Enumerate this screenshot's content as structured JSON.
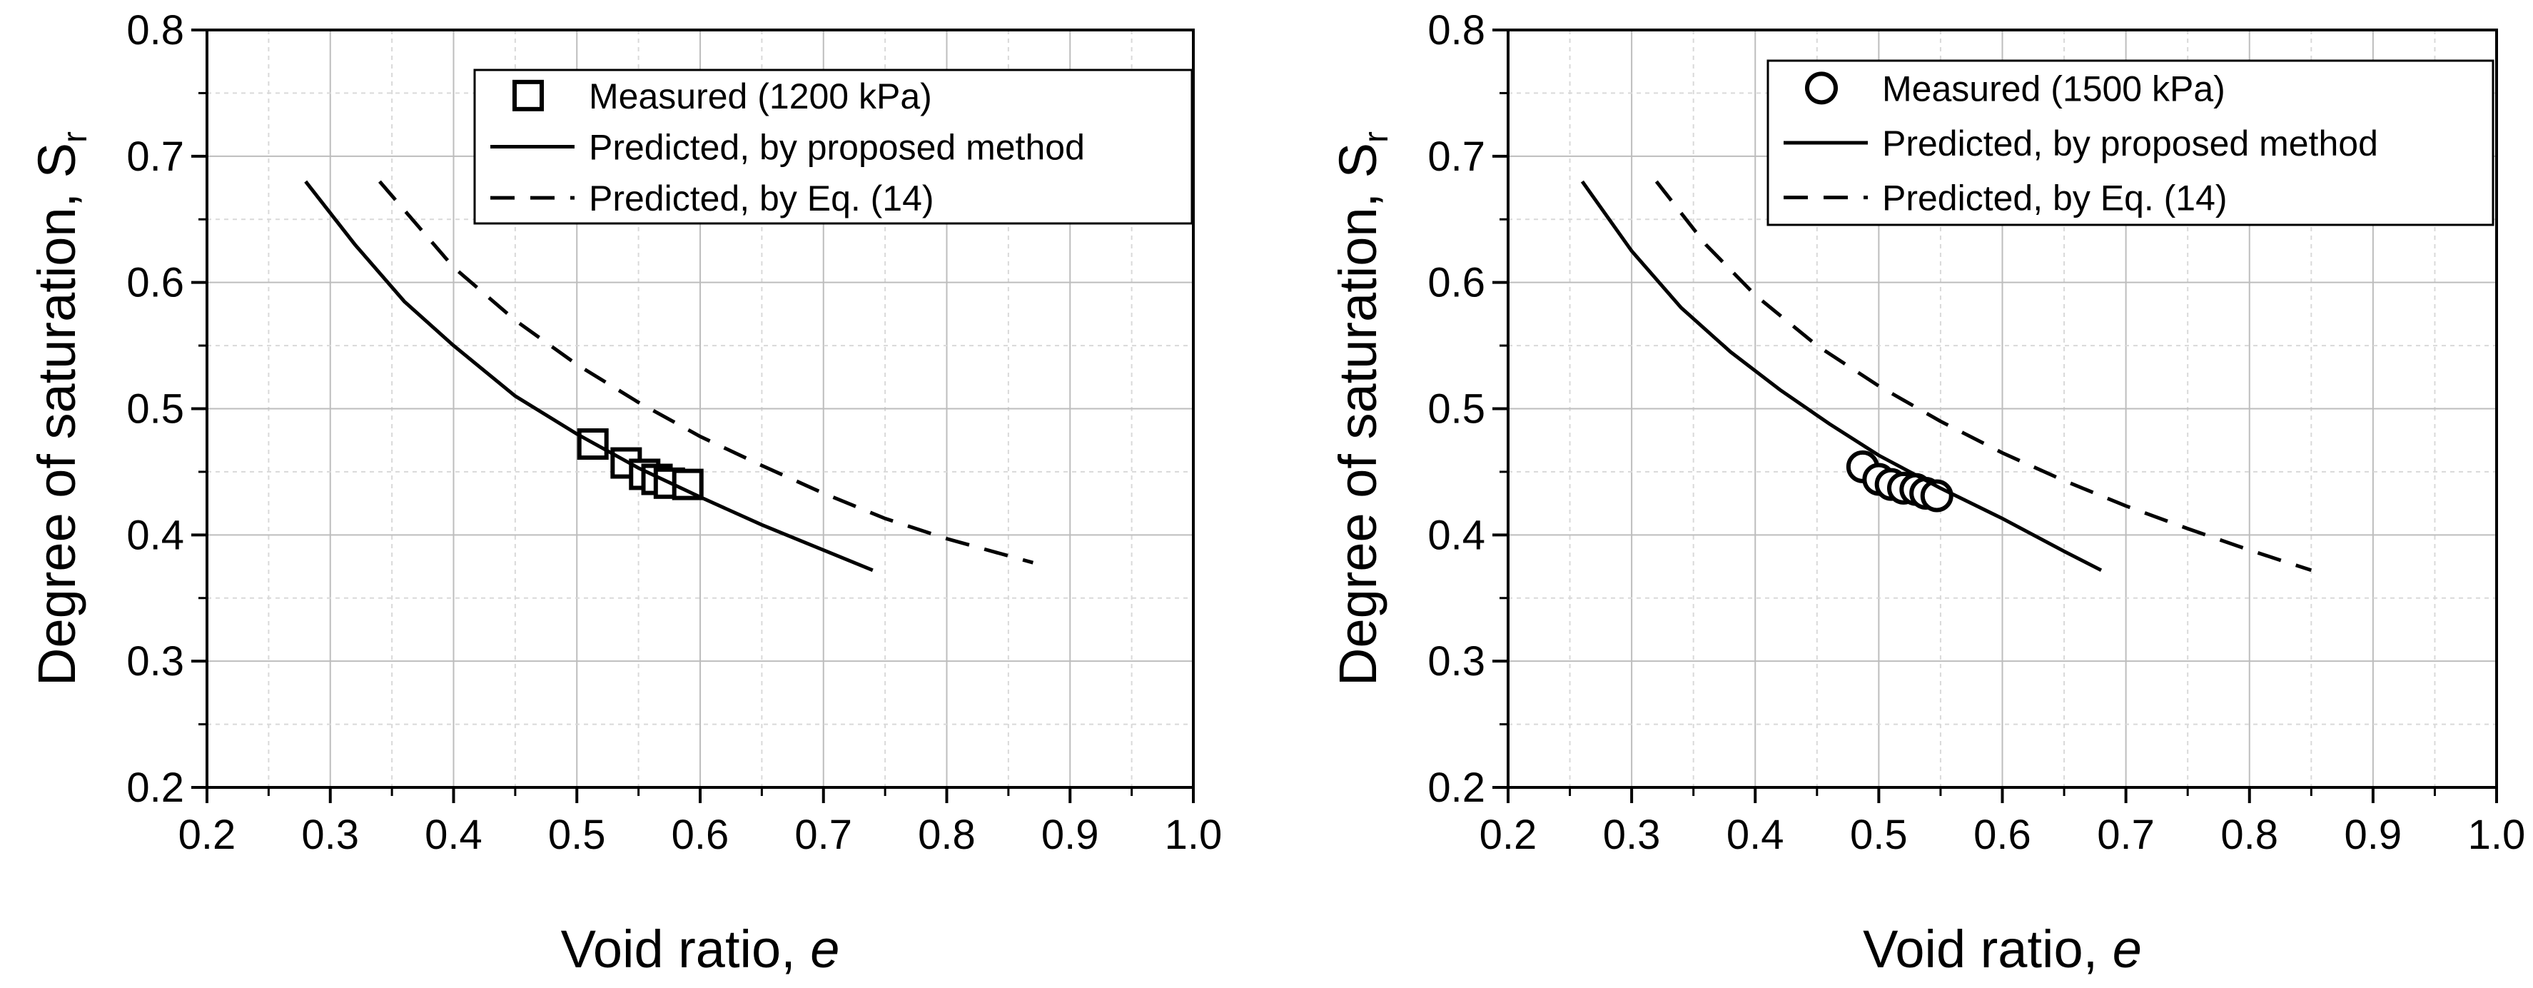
{
  "chart_data": [
    {
      "type": "line",
      "panel": "left",
      "xlabel": "Void ratio, ",
      "xlabel_symbol": "e",
      "ylabel": "Degree of saturation, S",
      "ylabel_subscript": "r",
      "xlim": [
        0.2,
        1.0
      ],
      "ylim": [
        0.2,
        0.8
      ],
      "x_ticks": [
        "0.2",
        "0.3",
        "0.4",
        "0.5",
        "0.6",
        "0.7",
        "0.8",
        "0.9",
        "1.0"
      ],
      "y_ticks": [
        "0.2",
        "0.3",
        "0.4",
        "0.5",
        "0.6",
        "0.7",
        "0.8"
      ],
      "grid": true,
      "legend_position": "top-right",
      "series": [
        {
          "name": "Measured (1200 kPa)",
          "kind": "scatter",
          "marker": "square",
          "x": [
            0.513,
            0.54,
            0.555,
            0.565,
            0.575,
            0.59
          ],
          "y": [
            0.472,
            0.457,
            0.448,
            0.444,
            0.441,
            0.44
          ]
        },
        {
          "name": "Predicted, by proposed method",
          "kind": "line",
          "style": "solid",
          "x": [
            0.28,
            0.32,
            0.36,
            0.4,
            0.45,
            0.5,
            0.55,
            0.6,
            0.65,
            0.7,
            0.74
          ],
          "y": [
            0.68,
            0.63,
            0.585,
            0.55,
            0.51,
            0.48,
            0.453,
            0.43,
            0.408,
            0.388,
            0.372
          ]
        },
        {
          "name": "Predicted, by Eq. (14)",
          "kind": "line",
          "style": "dashed",
          "x": [
            0.34,
            0.4,
            0.45,
            0.5,
            0.55,
            0.6,
            0.65,
            0.7,
            0.75,
            0.8,
            0.87
          ],
          "y": [
            0.68,
            0.612,
            0.57,
            0.535,
            0.505,
            0.478,
            0.455,
            0.433,
            0.413,
            0.397,
            0.378
          ]
        }
      ]
    },
    {
      "type": "line",
      "panel": "right",
      "xlabel": "Void ratio, ",
      "xlabel_symbol": "e",
      "ylabel": "Degree of saturation, S",
      "ylabel_subscript": "r",
      "xlim": [
        0.2,
        1.0
      ],
      "ylim": [
        0.2,
        0.8
      ],
      "x_ticks": [
        "0.2",
        "0.3",
        "0.4",
        "0.5",
        "0.6",
        "0.7",
        "0.8",
        "0.9",
        "1.0"
      ],
      "y_ticks": [
        "0.2",
        "0.3",
        "0.4",
        "0.5",
        "0.6",
        "0.7",
        "0.8"
      ],
      "grid": true,
      "legend_position": "top-right",
      "series": [
        {
          "name": "Measured (1500 kPa)",
          "kind": "scatter",
          "marker": "circle",
          "x": [
            0.487,
            0.5,
            0.51,
            0.52,
            0.53,
            0.538,
            0.547
          ],
          "y": [
            0.454,
            0.444,
            0.44,
            0.437,
            0.436,
            0.433,
            0.431
          ]
        },
        {
          "name": "Predicted, by proposed method",
          "kind": "line",
          "style": "solid",
          "x": [
            0.26,
            0.3,
            0.34,
            0.38,
            0.42,
            0.46,
            0.5,
            0.55,
            0.6,
            0.65,
            0.68
          ],
          "y": [
            0.68,
            0.625,
            0.58,
            0.545,
            0.515,
            0.488,
            0.463,
            0.437,
            0.413,
            0.387,
            0.372
          ]
        },
        {
          "name": "Predicted, by Eq. (14)",
          "kind": "line",
          "style": "dashed",
          "x": [
            0.32,
            0.36,
            0.4,
            0.45,
            0.5,
            0.55,
            0.6,
            0.65,
            0.7,
            0.75,
            0.8,
            0.85
          ],
          "y": [
            0.68,
            0.63,
            0.59,
            0.55,
            0.518,
            0.49,
            0.465,
            0.443,
            0.423,
            0.405,
            0.388,
            0.372
          ]
        }
      ]
    }
  ]
}
